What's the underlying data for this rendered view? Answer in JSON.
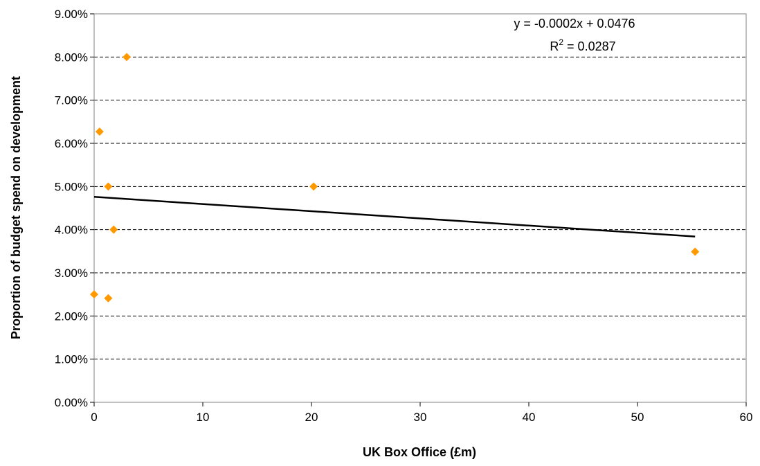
{
  "chart_data": {
    "type": "scatter",
    "title": "",
    "xlabel": "UK Box Office (£m)",
    "ylabel": "Proportion of budget spend on development",
    "xlim": [
      0,
      60
    ],
    "ylim": [
      0,
      0.09
    ],
    "x_ticks": [
      0,
      10,
      20,
      30,
      40,
      50,
      60
    ],
    "x_tick_labels": [
      "0",
      "10",
      "20",
      "30",
      "40",
      "50",
      "60"
    ],
    "y_ticks": [
      0,
      0.01,
      0.02,
      0.03,
      0.04,
      0.05,
      0.06,
      0.07,
      0.08,
      0.09
    ],
    "y_tick_labels": [
      "0.00%",
      "1.00%",
      "2.00%",
      "3.00%",
      "4.00%",
      "5.00%",
      "6.00%",
      "7.00%",
      "8.00%",
      "9.00%"
    ],
    "grid": "horizontal-dashed",
    "legend": "none",
    "points": [
      {
        "x": 0.0,
        "y": 0.025
      },
      {
        "x": 0.5,
        "y": 0.0627
      },
      {
        "x": 1.3,
        "y": 0.05
      },
      {
        "x": 1.3,
        "y": 0.0241
      },
      {
        "x": 1.8,
        "y": 0.04
      },
      {
        "x": 3.0,
        "y": 0.08
      },
      {
        "x": 20.2,
        "y": 0.05
      },
      {
        "x": 55.3,
        "y": 0.0349
      }
    ],
    "trendline": {
      "type": "linear",
      "x_range": [
        0,
        55.3
      ],
      "y_start": 0.0476,
      "y_end": 0.0384,
      "equation": "y = -0.0002x + 0.0476",
      "r2_prefix": "R",
      "r2_sup": "2",
      "r2_value": " = 0.0287"
    },
    "colors": {
      "marker": "#FF9900",
      "trendline": "#000000",
      "grid": "#000000",
      "frame": "#808080"
    }
  }
}
